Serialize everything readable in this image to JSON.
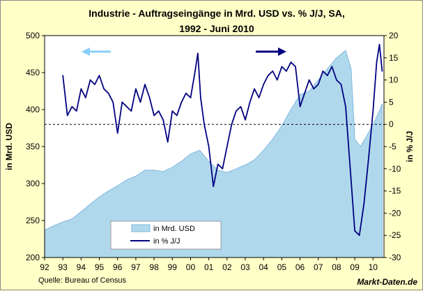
{
  "chart_data": {
    "type": "area+line",
    "title": "Industrie - Auftragseingänge in Mrd. USD vs. % J/J, SA,",
    "subtitle": "1992 - Juni 2010",
    "ylabel_left": "in Mrd. USD",
    "ylabel_right": "in % J/J",
    "ylim_left": [
      200,
      500
    ],
    "ylim_right": [
      -30,
      20
    ],
    "left_ticks": [
      "500",
      "450",
      "400",
      "350",
      "300",
      "250",
      "200"
    ],
    "right_ticks": [
      "20",
      "15",
      "10",
      "5",
      "0",
      "-5",
      "-10",
      "-15",
      "-20",
      "-25",
      "-30"
    ],
    "x_ticks": [
      "92",
      "93",
      "94",
      "95",
      "96",
      "97",
      "98",
      "99",
      "00",
      "01",
      "02",
      "03",
      "04",
      "05",
      "06",
      "07",
      "08",
      "09",
      "10"
    ],
    "xlim": [
      1992.0,
      2010.6
    ],
    "zero_line": 0,
    "legend": [
      "in Mrd. USD",
      "in % J/J"
    ],
    "source": "Quelle: Bureau of Census",
    "brand": "Markt-Daten.de",
    "colors": {
      "area_fill": "#b0d8ec",
      "area_edge": "#7fb8e0",
      "line": "#000080",
      "plot_bg": "#ffffff",
      "frame_bg": "#ffffc8",
      "left_arrow": "#87cefa",
      "right_arrow": "#000080"
    },
    "series": [
      {
        "name": "in Mrd. USD",
        "axis": "left",
        "kind": "area",
        "x": [
          1992.0,
          1992.5,
          1993.0,
          1993.5,
          1994.0,
          1994.5,
          1995.0,
          1995.5,
          1996.0,
          1996.5,
          1997.0,
          1997.5,
          1998.0,
          1998.5,
          1999.0,
          1999.5,
          2000.0,
          2000.5,
          2001.0,
          2001.5,
          2002.0,
          2002.5,
          2003.0,
          2003.5,
          2004.0,
          2004.5,
          2005.0,
          2005.5,
          2006.0,
          2006.5,
          2007.0,
          2007.5,
          2008.0,
          2008.5,
          2008.8,
          2009.0,
          2009.3,
          2009.6,
          2010.0,
          2010.3,
          2010.5
        ],
        "values": [
          237,
          243,
          248,
          252,
          262,
          272,
          282,
          290,
          297,
          305,
          310,
          318,
          318,
          316,
          322,
          330,
          340,
          345,
          330,
          318,
          315,
          320,
          325,
          332,
          345,
          360,
          378,
          400,
          420,
          425,
          440,
          455,
          470,
          480,
          455,
          360,
          350,
          362,
          380,
          395,
          408
        ]
      },
      {
        "name": "in % J/J",
        "axis": "right",
        "kind": "line",
        "x": [
          1993.0,
          1993.25,
          1993.5,
          1993.75,
          1994.0,
          1994.25,
          1994.5,
          1994.75,
          1995.0,
          1995.25,
          1995.5,
          1995.75,
          1996.0,
          1996.25,
          1996.5,
          1996.75,
          1997.0,
          1997.25,
          1997.5,
          1997.75,
          1998.0,
          1998.25,
          1998.5,
          1998.75,
          1999.0,
          1999.25,
          1999.5,
          1999.75,
          2000.0,
          2000.25,
          2000.4,
          2000.55,
          2000.75,
          2001.0,
          2001.25,
          2001.5,
          2001.75,
          2002.0,
          2002.25,
          2002.5,
          2002.75,
          2003.0,
          2003.25,
          2003.5,
          2003.75,
          2004.0,
          2004.25,
          2004.5,
          2004.75,
          2005.0,
          2005.25,
          2005.5,
          2005.75,
          2006.0,
          2006.25,
          2006.5,
          2006.75,
          2007.0,
          2007.25,
          2007.5,
          2007.75,
          2008.0,
          2008.25,
          2008.5,
          2008.75,
          2009.0,
          2009.25,
          2009.5,
          2009.75,
          2010.0,
          2010.2,
          2010.35,
          2010.5
        ],
        "values": [
          11,
          2,
          4,
          3,
          8,
          6,
          10,
          9,
          11,
          8,
          7,
          5,
          -2,
          5,
          4,
          3,
          8,
          5,
          9,
          6,
          2,
          3,
          1,
          -4,
          3,
          2,
          5,
          7,
          6,
          12,
          16,
          6,
          0,
          -5,
          -14,
          -9,
          -10,
          -5,
          0,
          3,
          4,
          1,
          5,
          8,
          6,
          9,
          11,
          12,
          10,
          13,
          12,
          14,
          13,
          4,
          7,
          10,
          8,
          9,
          12,
          11,
          13,
          10,
          9,
          4,
          -10,
          -24,
          -25,
          -18,
          -8,
          3,
          14,
          18,
          12
        ]
      }
    ]
  }
}
